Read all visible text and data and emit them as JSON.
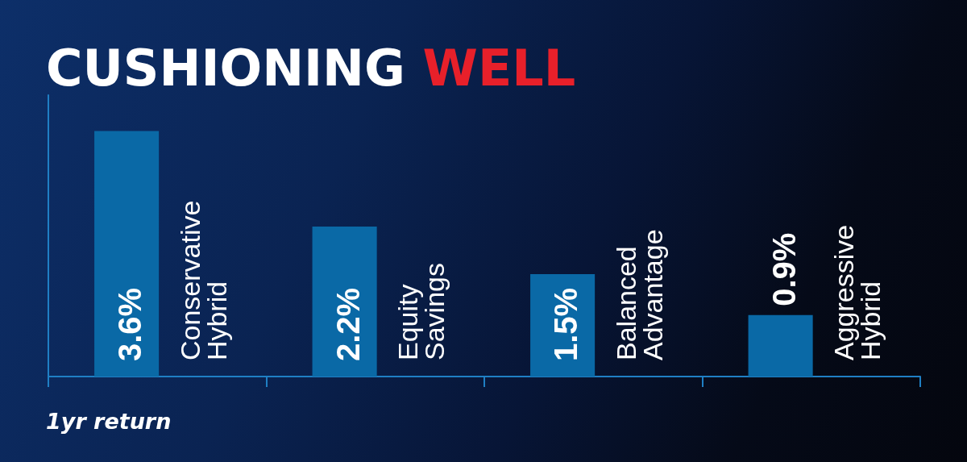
{
  "chart_data": {
    "type": "bar",
    "title": "CUSHIONING WELL",
    "categories": [
      "Conservative Hybrid",
      "Equity Savings",
      "Balanced Advantage",
      "Aggressive Hybrid"
    ],
    "values": [
      3.6,
      2.2,
      1.5,
      0.9
    ],
    "value_labels": [
      "3.6%",
      "2.2%",
      "1.5%",
      "0.9%"
    ],
    "color": "#0a69a6",
    "annotations": [
      "1yr return"
    ]
  }
}
